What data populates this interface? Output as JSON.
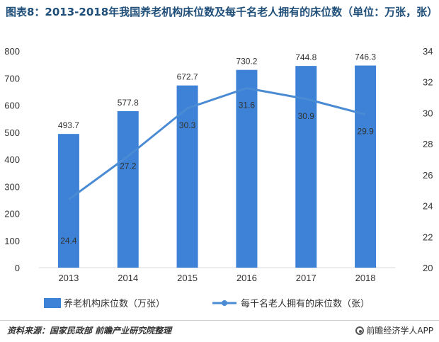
{
  "title": "图表8：2013-2018年我国养老机构床位数及每千名老人拥有的床位数（单位：万张，张）",
  "source": "资料来源：国家民政部 前瞻产业研究院整理",
  "logo_text": "前瞻经济学人APP",
  "colors": {
    "bar": "#3d82d6",
    "line": "#4a8bd4",
    "axis_text": "#333333",
    "grid": "#d9d9d9"
  },
  "chart_data": {
    "type": "bar",
    "categories": [
      "2013",
      "2014",
      "2015",
      "2016",
      "2017",
      "2018"
    ],
    "series": [
      {
        "name": "养老机构床位数（万张）",
        "type": "bar",
        "axis": "left",
        "values": [
          493.7,
          577.8,
          672.7,
          730.2,
          744.8,
          746.3
        ],
        "labels": [
          "493.7",
          "577.8",
          "672.7",
          "730.2",
          "744.8",
          "746.3"
        ]
      },
      {
        "name": "每千名老人拥有的床位数（张）",
        "type": "line",
        "axis": "right",
        "values": [
          24.4,
          27.2,
          30.3,
          31.6,
          30.9,
          29.9
        ],
        "labels": [
          "24.4",
          "27.2",
          "30.3",
          "31.6",
          "30.9",
          "29.9"
        ]
      }
    ],
    "y_left": {
      "lim": [
        0,
        800
      ],
      "ticks": [
        "0",
        "100",
        "200",
        "300",
        "400",
        "500",
        "600",
        "700",
        "800"
      ]
    },
    "y_right": {
      "lim": [
        20,
        34
      ],
      "ticks": [
        "20",
        "22",
        "24",
        "26",
        "28",
        "30",
        "32",
        "34"
      ]
    },
    "legend_position": "bottom",
    "grid": false
  }
}
